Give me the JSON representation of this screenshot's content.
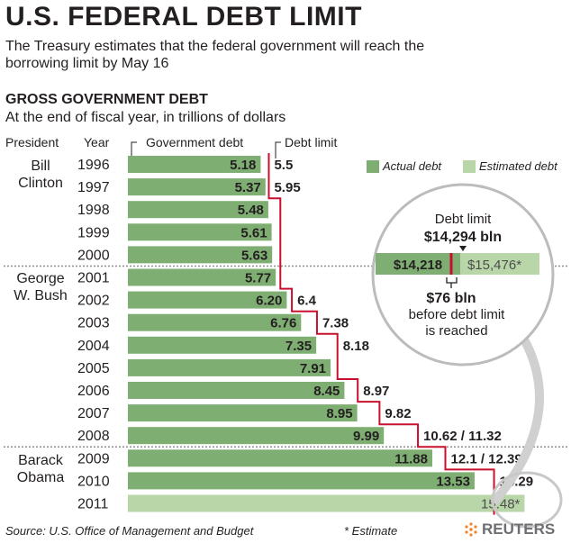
{
  "title": "U.S. FEDERAL DEBT LIMIT",
  "subtitle": "The Treasury estimates that the federal government will reach the borrowing limit by May 16",
  "section_title": "GROSS GOVERNMENT DEBT",
  "section_subtitle": "At the end of fiscal year, in trillions of dollars",
  "column_headers": {
    "president": "President",
    "year": "Year",
    "government_debt": "Government debt",
    "debt_limit": "Debt limit"
  },
  "legend": {
    "actual": "Actual debt",
    "estimated": "Estimated debt"
  },
  "presidents": [
    {
      "name": "Bill Clinton",
      "line1": "Bill",
      "line2": "Clinton"
    },
    {
      "name": "George W. Bush",
      "line1": "George",
      "line2": "W. Bush"
    },
    {
      "name": "Barack Obama",
      "line1": "Barack",
      "line2": "Obama"
    }
  ],
  "callout": {
    "header": "Debt limit",
    "limit_value": "$14,294 bln",
    "actual_value": "$14,218",
    "estimated_value": "$15,476*",
    "gap_value": "$76 bln",
    "gap_text_1": "before debt limit",
    "gap_text_2": "is reached"
  },
  "footer": {
    "source": "Source: U.S. Office of Management and Budget",
    "note": "* Estimate",
    "brand": "REUTERS"
  },
  "colors": {
    "actual_bar": "#7fae73",
    "estimated_bar": "#b9d6a9",
    "debt_limit_line": "#c8102e",
    "separator": "#8c8c8c"
  },
  "chart_data": {
    "type": "bar",
    "orientation": "horizontal",
    "categories": [
      "1996",
      "1997",
      "1998",
      "1999",
      "2000",
      "2001",
      "2002",
      "2003",
      "2004",
      "2005",
      "2006",
      "2007",
      "2008",
      "2009",
      "2010",
      "2011"
    ],
    "series": [
      {
        "name": "Government debt",
        "values": [
          5.18,
          5.37,
          5.48,
          5.61,
          5.63,
          5.77,
          6.2,
          6.76,
          7.35,
          7.91,
          8.45,
          8.95,
          9.99,
          11.88,
          13.53,
          15.48
        ],
        "labels": [
          "5.18",
          "5.37",
          "5.48",
          "5.61",
          "5.63",
          "5.77",
          "6.20",
          "6.76",
          "7.35",
          "7.91",
          "8.45",
          "8.95",
          "9.99",
          "11.88",
          "13.53",
          "15.48*"
        ],
        "estimated": [
          false,
          false,
          false,
          false,
          false,
          false,
          false,
          false,
          false,
          false,
          false,
          false,
          false,
          false,
          false,
          true
        ]
      },
      {
        "name": "Debt limit",
        "type": "step",
        "values": [
          5.5,
          5.5,
          5.95,
          5.95,
          5.95,
          5.95,
          6.4,
          7.38,
          8.18,
          8.18,
          8.97,
          9.82,
          11.32,
          12.39,
          14.29,
          14.29
        ]
      }
    ],
    "debt_limit_labels": [
      {
        "year": "1996",
        "text": "5.5"
      },
      {
        "year": "1997",
        "text": "5.95"
      },
      {
        "year": "2002",
        "text": "6.4"
      },
      {
        "year": "2003",
        "text": "7.38"
      },
      {
        "year": "2004",
        "text": "8.18"
      },
      {
        "year": "2006",
        "text": "8.97"
      },
      {
        "year": "2007",
        "text": "9.82"
      },
      {
        "year": "2008",
        "text": "10.62 / 11.32"
      },
      {
        "year": "2009",
        "text": "12.1 / 12.39"
      },
      {
        "year": "2010",
        "text": "14.29"
      }
    ],
    "xlim": [
      0,
      16.5
    ]
  }
}
